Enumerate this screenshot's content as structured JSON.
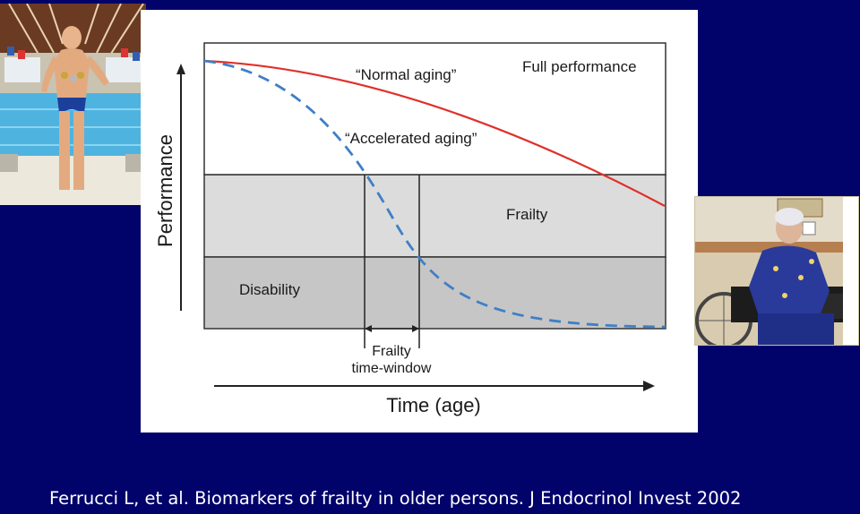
{
  "diagram": {
    "label_normal_aging": "“Normal aging”",
    "label_accelerated_aging": "“Accelerated aging”",
    "label_full_performance": "Full performance",
    "label_frailty": "Frailty",
    "label_disability": "Disability",
    "label_window_line1": "Frailty",
    "label_window_line2": "time-window",
    "y_axis_label": "Performance",
    "x_axis_label": "Time (age)",
    "colors": {
      "normal_curve": "#e0302a",
      "accelerated_curve": "#3f7fc6",
      "frailty_zone": "#dcdcdc",
      "disability_zone": "#c6c6c6"
    }
  },
  "photos": {
    "left": "photo of an older athlete in a swimsuit wearing medals beside a pool",
    "right": "photo of an elderly woman seated in a wheelchair"
  },
  "citation": "Ferrucci L, et al. Biomarkers of frailty in older persons. J Endocrinol Invest 2002",
  "background_color": "#02026b"
}
